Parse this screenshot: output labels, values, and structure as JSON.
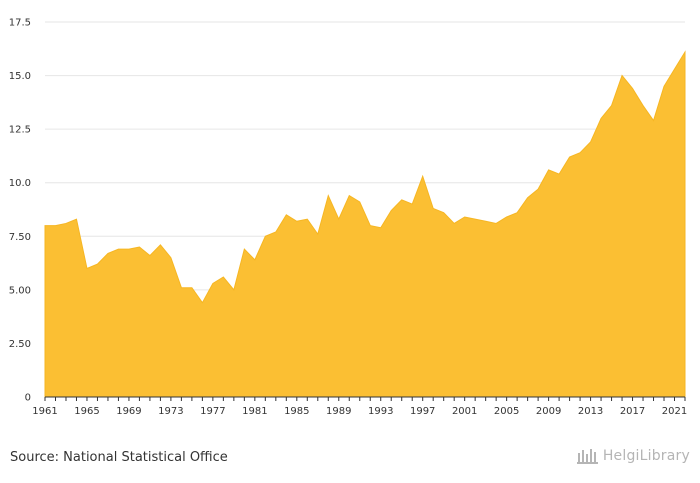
{
  "colors": {
    "area_fill": "#fbbf33",
    "area_stroke": "#f6b623",
    "grid": "#e6e6e6",
    "axis": "#333333",
    "source_text": "#333333",
    "brand": "#b5b5b5"
  },
  "footer": {
    "source": "Source: National Statistical Office",
    "brand_name": "HelgiLibrary",
    "brand_icon": "library-logo-icon"
  },
  "chart_data": {
    "type": "area",
    "title": "",
    "xlabel": "",
    "ylabel": "",
    "x": [
      1961,
      1962,
      1963,
      1964,
      1965,
      1966,
      1967,
      1968,
      1969,
      1970,
      1971,
      1972,
      1973,
      1974,
      1975,
      1976,
      1977,
      1978,
      1979,
      1980,
      1981,
      1982,
      1983,
      1984,
      1985,
      1986,
      1987,
      1988,
      1989,
      1990,
      1991,
      1992,
      1993,
      1994,
      1995,
      1996,
      1997,
      1998,
      1999,
      2000,
      2001,
      2002,
      2003,
      2004,
      2005,
      2006,
      2007,
      2008,
      2009,
      2010,
      2011,
      2012,
      2013,
      2014,
      2015,
      2016,
      2017,
      2018,
      2019,
      2020,
      2021,
      2022
    ],
    "series": [
      {
        "values": [
          8.0,
          8.0,
          8.1,
          8.3,
          6.0,
          6.2,
          6.7,
          6.9,
          6.9,
          7.0,
          6.6,
          7.1,
          6.5,
          5.1,
          5.1,
          4.4,
          5.3,
          5.6,
          5.0,
          6.9,
          6.4,
          7.5,
          7.7,
          8.5,
          8.2,
          8.3,
          7.6,
          9.4,
          8.3,
          9.4,
          9.1,
          8.0,
          7.9,
          8.7,
          9.2,
          9.0,
          10.3,
          8.8,
          8.6,
          8.1,
          8.4,
          8.3,
          8.2,
          8.1,
          8.4,
          8.6,
          9.3,
          9.7,
          10.6,
          10.4,
          11.2,
          11.4,
          11.9,
          13.0,
          13.6,
          15.0,
          14.4,
          13.6,
          12.9,
          14.5,
          15.3,
          16.1
        ]
      }
    ],
    "x_tick_labels": [
      "1961",
      "1965",
      "1969",
      "1973",
      "1977",
      "1981",
      "1985",
      "1989",
      "1993",
      "1997",
      "2001",
      "2005",
      "2009",
      "2013",
      "2017",
      "2021"
    ],
    "y_tick_labels": [
      "0",
      "2.50",
      "5.00",
      "7.50",
      "10.0",
      "12.5",
      "15.0",
      "17.5"
    ],
    "y_ticks": [
      0,
      2.5,
      5,
      7.5,
      10,
      12.5,
      15,
      17.5
    ],
    "xlim": [
      1961,
      2022
    ],
    "ylim": [
      0,
      17.5
    ],
    "grid": true,
    "legend": "none"
  }
}
